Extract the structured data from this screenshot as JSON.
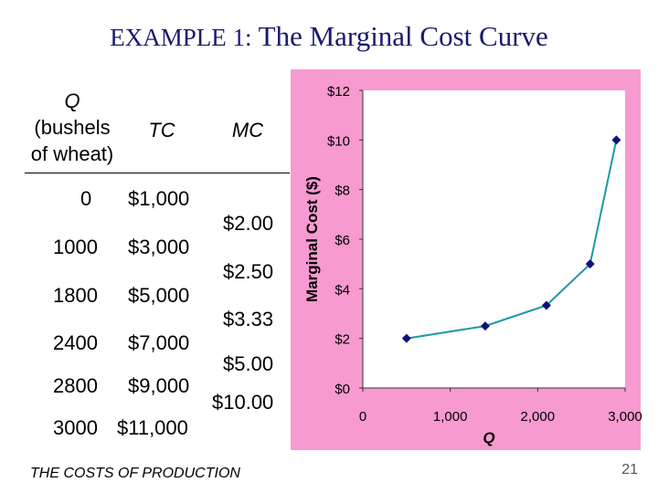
{
  "title": {
    "lead": "EXAMPLE 1:",
    "main": "The Marginal Cost Curve"
  },
  "table": {
    "headers": {
      "q_label": "Q",
      "q_sub1": "(bushels",
      "q_sub2": "of wheat)",
      "tc": "TC",
      "mc": "MC"
    },
    "rows": [
      {
        "q": "0",
        "tc": "$1,000"
      },
      {
        "q": "1000",
        "tc": "$3,000"
      },
      {
        "q": "1800",
        "tc": "$5,000"
      },
      {
        "q": "2400",
        "tc": "$7,000"
      },
      {
        "q": "2800",
        "tc": "$9,000"
      },
      {
        "q": "3000",
        "tc": "$11,000"
      }
    ],
    "mc_values": [
      "$2.00",
      "$2.50",
      "$3.33",
      "$5.00",
      "$10.00"
    ]
  },
  "footer": "THE COSTS OF PRODUCTION",
  "page_number": "21",
  "colors": {
    "title": "#1a1a6e",
    "chart_bg": "#f79ad0",
    "plot_bg": "#ffffff",
    "line": "#1e9aa0",
    "marker": "#10107a"
  },
  "chart_data": {
    "type": "line",
    "xlabel": "Q",
    "ylabel": "Marginal Cost ($)",
    "xlim": [
      0,
      3000
    ],
    "ylim": [
      0,
      12
    ],
    "x_ticks": [
      0,
      1000,
      2000,
      3000
    ],
    "x_tick_labels": [
      "0",
      "1,000",
      "2,000",
      "3,000"
    ],
    "y_ticks": [
      0,
      2,
      4,
      6,
      8,
      10,
      12
    ],
    "y_tick_labels": [
      "$0",
      "$2",
      "$4",
      "$6",
      "$8",
      "$10",
      "$12"
    ],
    "grid": false,
    "series": [
      {
        "x": [
          500,
          1400,
          2100,
          2600,
          2900
        ],
        "y": [
          2.0,
          2.5,
          3.33,
          5.0,
          10.0
        ]
      }
    ]
  }
}
